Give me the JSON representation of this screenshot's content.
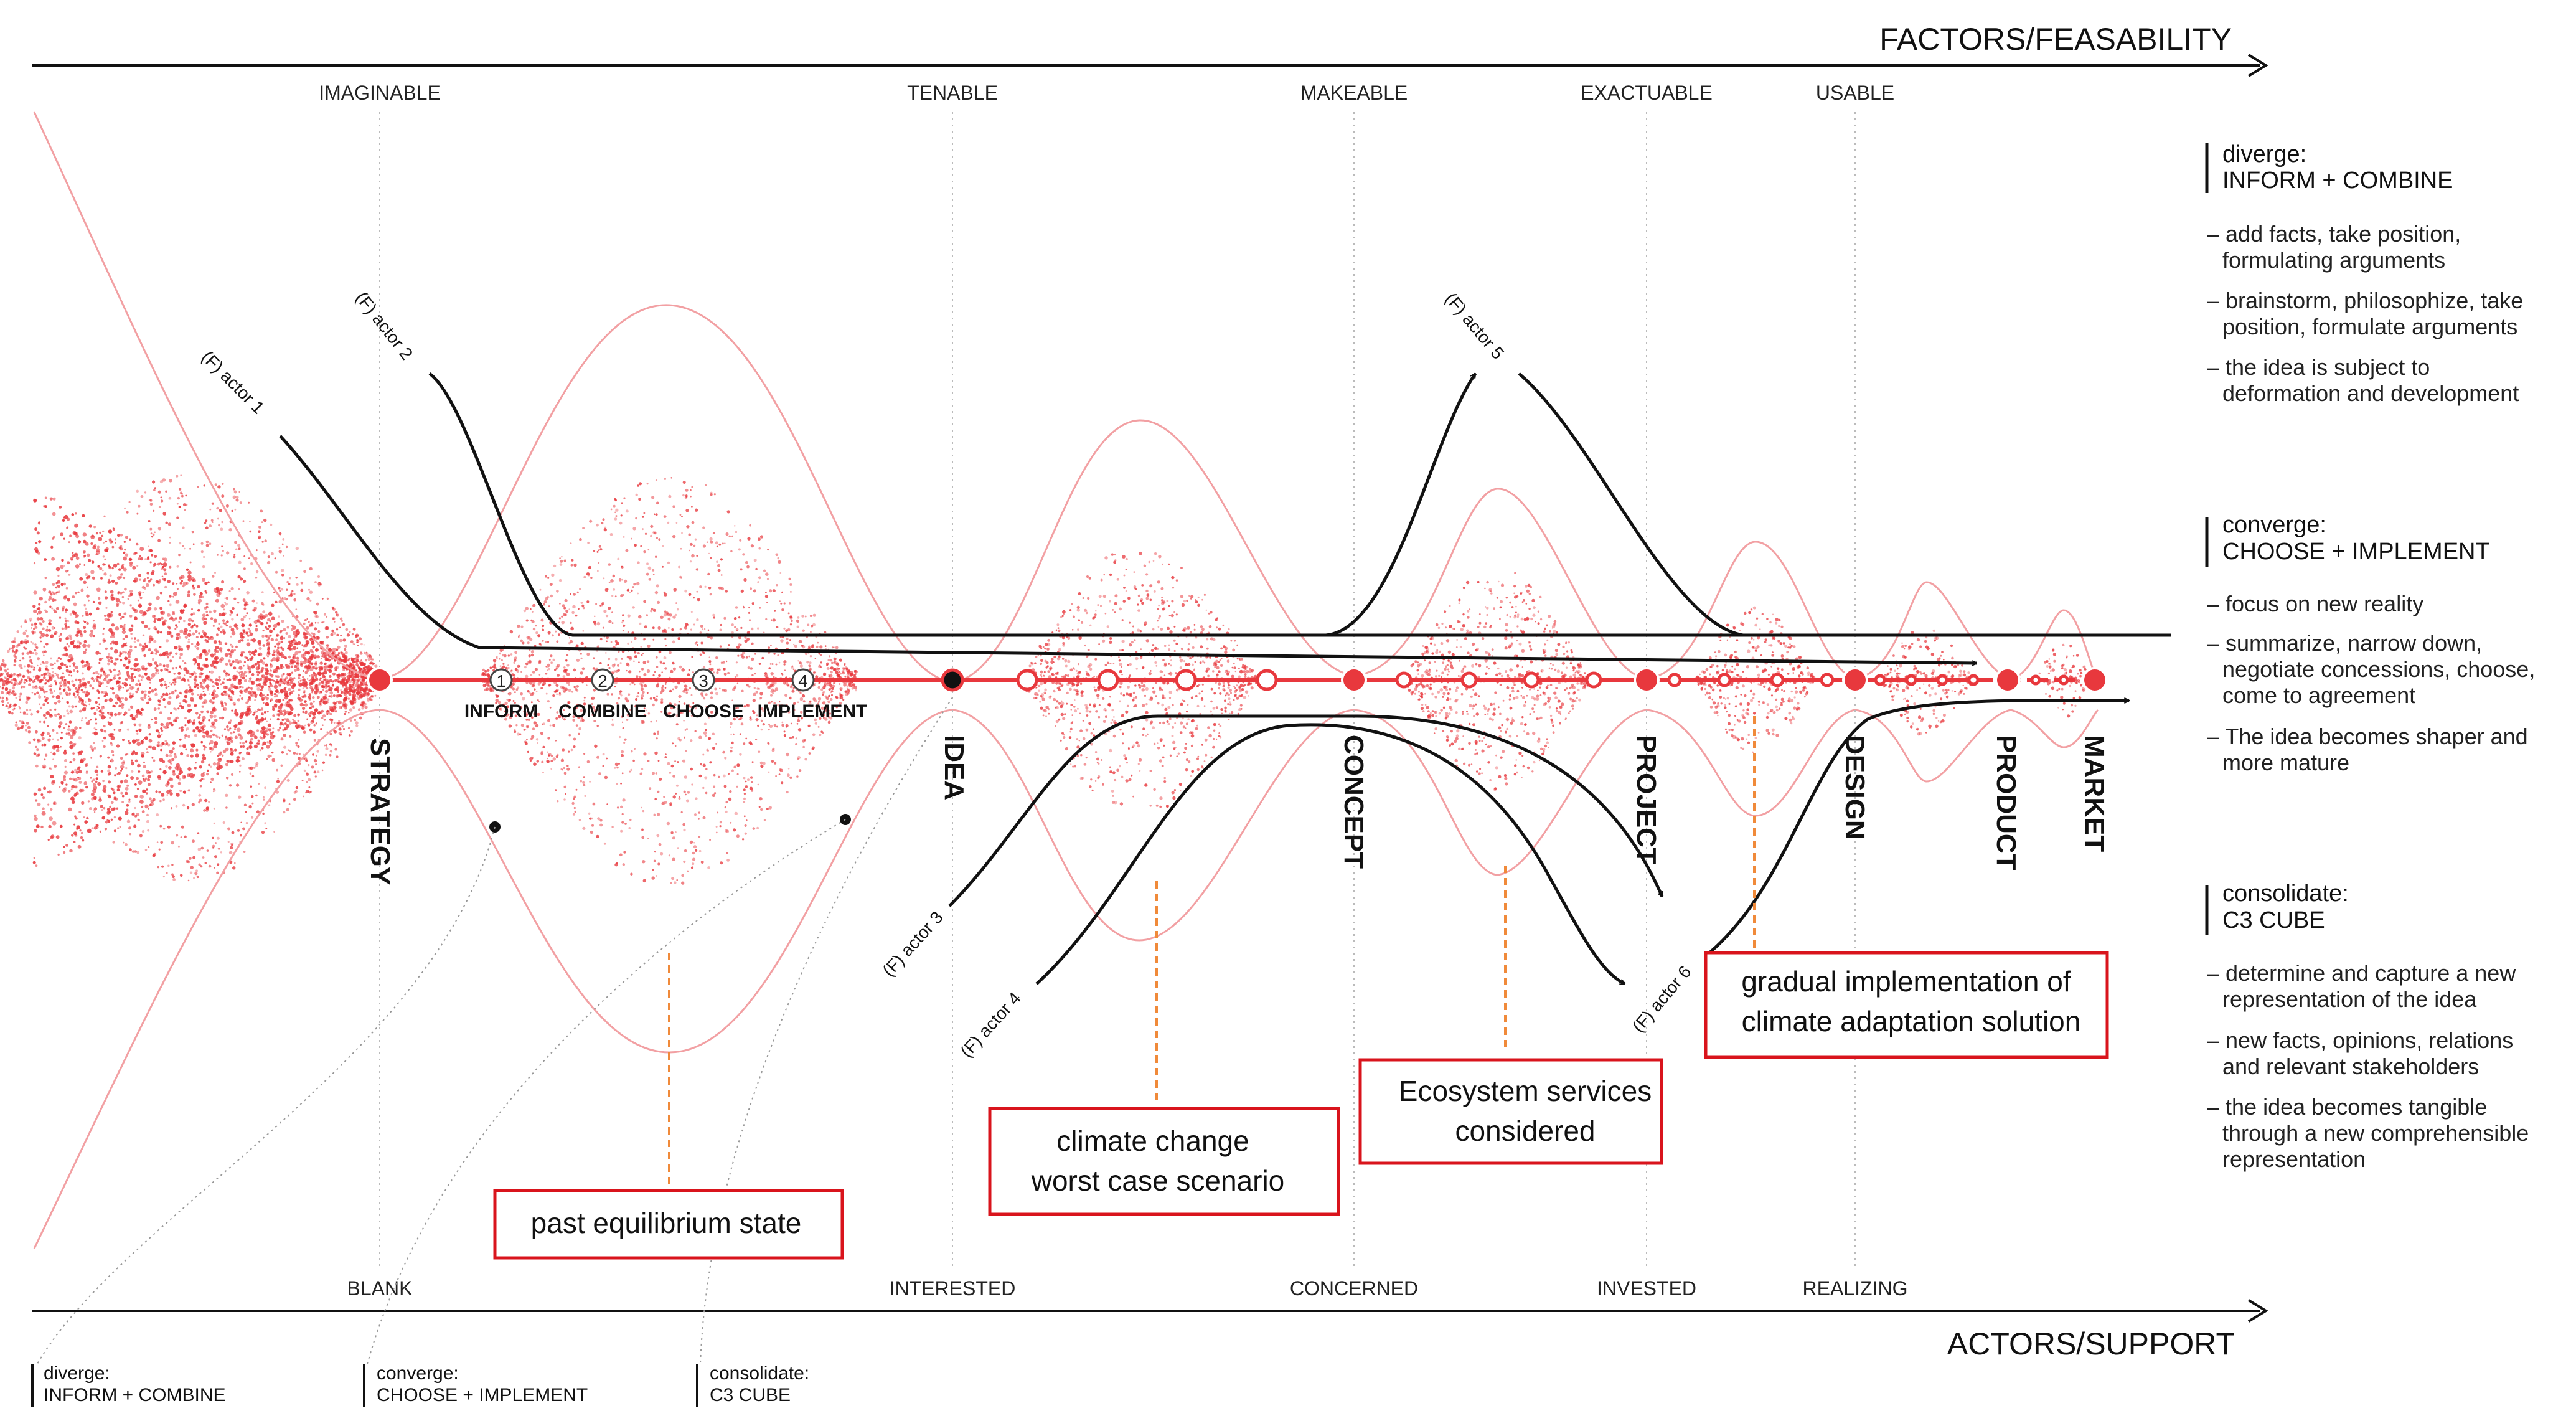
{
  "axes": {
    "top_title": "FACTORS/FEASABILITY",
    "bottom_title": "ACTORS/SUPPORT",
    "top_labels": [
      "IMAGINABLE",
      "TENABLE",
      "MAKEABLE",
      "EXACTUABLE",
      "USABLE"
    ],
    "bottom_labels": [
      "BLANK",
      "INTERESTED",
      "CONCERNED",
      "INVESTED",
      "REALIZING"
    ]
  },
  "stages": [
    "STRATEGY",
    "IDEA",
    "CONCEPT",
    "PROJECT",
    "DESIGN",
    "PRODUCT",
    "MARKET"
  ],
  "steps": [
    {
      "num": "1",
      "label": "INFORM"
    },
    {
      "num": "2",
      "label": "COMBINE"
    },
    {
      "num": "3",
      "label": "CHOOSE"
    },
    {
      "num": "4",
      "label": "IMPLEMENT"
    }
  ],
  "actors": [
    "(F) actor 1",
    "(F) actor 2",
    "(F) actor 3",
    "(F) actor 4",
    "(F) actor 5",
    "(F) actor 6"
  ],
  "side_panel": {
    "diverge": {
      "title1": "diverge:",
      "title2": "INFORM + COMBINE",
      "bullets": [
        [
          "– add facts, take position,",
          "formulating arguments"
        ],
        [
          "– brainstorm, philosophize, take",
          "position, formulate arguments"
        ],
        [
          "– the idea is subject to",
          "deformation and development"
        ]
      ]
    },
    "converge": {
      "title1": "converge:",
      "title2": "CHOOSE + IMPLEMENT",
      "bullets": [
        [
          "– focus on new reality"
        ],
        [
          "– summarize, narrow down,",
          "negotiate concessions, choose,",
          "come to agreement"
        ],
        [
          "– The idea becomes shaper and",
          "more mature"
        ]
      ]
    },
    "consolidate": {
      "title1": "consolidate:",
      "title2": "C3 CUBE",
      "bullets": [
        [
          "– determine and capture a new",
          "representation of the idea"
        ],
        [
          "– new facts, opinions, relations",
          "and relevant stakeholders"
        ],
        [
          "– the idea becomes tangible",
          "through a new comprehensible",
          "representation"
        ]
      ]
    }
  },
  "legend": [
    {
      "title": "diverge:",
      "sub": "INFORM + COMBINE"
    },
    {
      "title": "converge:",
      "sub": "CHOOSE + IMPLEMENT"
    },
    {
      "title": "consolidate:",
      "sub": "C3 CUBE"
    }
  ],
  "callouts": {
    "past": "past equilibrium state",
    "climate": [
      "climate change",
      "worst case scenario"
    ],
    "ecosystem": [
      "Ecosystem services",
      "considered"
    ],
    "gradual": [
      "gradual implementation of",
      "climate adaptation solution"
    ]
  },
  "colors": {
    "accent": "#e8383d",
    "envelope": "#f2a0a3",
    "callout_border": "#d9141c",
    "dashed": "#f08a3a"
  }
}
